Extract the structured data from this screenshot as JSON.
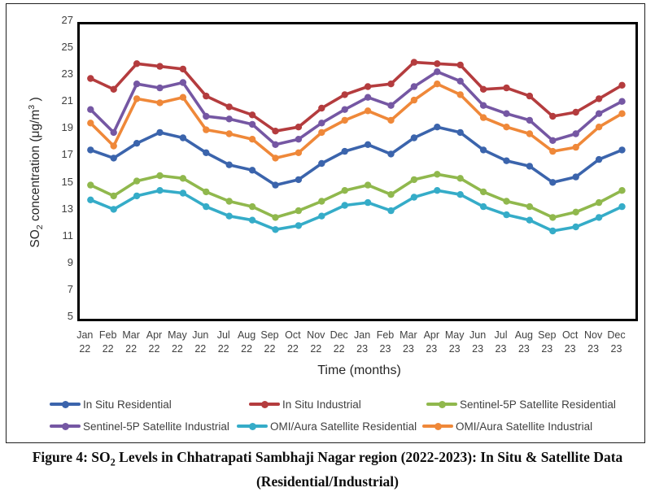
{
  "figure": {
    "caption_line1_prefix": "Figure 4: SO",
    "caption_line1_sub": "2",
    "caption_line1_rest": " Levels in Chhatrapati Sambhaji Nagar region (2022-2023): In Situ & Satellite Data",
    "caption_line2": "(Residential/Industrial)"
  },
  "chart_data": {
    "type": "line",
    "title": "",
    "x_title": "Time (months)",
    "y_title_parts": {
      "prefix": "SO",
      "sub": "2",
      "mid": " concentration (μg/m",
      "sup": "3",
      "suffix": " )"
    },
    "categories": [
      "Jan 22",
      "Feb 22",
      "Mar 22",
      "Apr 22",
      "May 22",
      "Jun 22",
      "Jul 22",
      "Aug 22",
      "Sep 22",
      "Oct 22",
      "Nov 22",
      "Dec 22",
      "Jan 23",
      "Feb 23",
      "Mar 23",
      "Apr 23",
      "May 23",
      "Jun 23",
      "Jul 23",
      "Aug 23",
      "Sep 23",
      "Oct 23",
      "Nov 23",
      "Dec 23"
    ],
    "ylim": [
      5,
      27
    ],
    "y_ticks": [
      27,
      25,
      23,
      21,
      19,
      17,
      15,
      13,
      11,
      9,
      7,
      5
    ],
    "grid": false,
    "legend_position": "bottom",
    "marker": "circle",
    "series": [
      {
        "name": "In Situ Residential",
        "color": "#3B64AC",
        "values": [
          17.6,
          17.0,
          18.1,
          18.9,
          18.5,
          17.4,
          16.5,
          16.1,
          15.0,
          15.4,
          16.6,
          17.5,
          18.0,
          17.3,
          18.5,
          19.3,
          18.9,
          17.6,
          16.8,
          16.4,
          15.2,
          15.6,
          16.9,
          17.6
        ]
      },
      {
        "name": "In Situ Industrial",
        "color": "#B43C3E",
        "values": [
          22.9,
          22.1,
          24.0,
          23.8,
          23.6,
          21.6,
          20.8,
          20.2,
          19.0,
          19.3,
          20.7,
          21.7,
          22.3,
          22.5,
          24.1,
          24.0,
          23.9,
          22.1,
          22.2,
          21.6,
          20.1,
          20.4,
          21.4,
          22.4
        ]
      },
      {
        "name": "Sentinel-5P Satellite Residential",
        "color": "#90B84D",
        "values": [
          15.0,
          14.2,
          15.3,
          15.7,
          15.5,
          14.5,
          13.8,
          13.4,
          12.6,
          13.1,
          13.8,
          14.6,
          15.0,
          14.3,
          15.4,
          15.8,
          15.5,
          14.5,
          13.8,
          13.4,
          12.6,
          13.0,
          13.7,
          14.6
        ]
      },
      {
        "name": "Sentinel-5P Satellite Industrial",
        "color": "#7557A3",
        "values": [
          20.6,
          18.9,
          22.5,
          22.2,
          22.6,
          20.1,
          19.9,
          19.5,
          18.0,
          18.4,
          19.6,
          20.6,
          21.5,
          20.9,
          22.3,
          23.4,
          22.7,
          20.9,
          20.3,
          19.8,
          18.3,
          18.8,
          20.3,
          21.2
        ]
      },
      {
        "name": "OMI/Aura Satellite Residential",
        "color": "#35ACC8",
        "values": [
          13.9,
          13.2,
          14.2,
          14.6,
          14.4,
          13.4,
          12.7,
          12.4,
          11.7,
          12.0,
          12.7,
          13.5,
          13.7,
          13.1,
          14.1,
          14.6,
          14.3,
          13.4,
          12.8,
          12.4,
          11.6,
          11.9,
          12.6,
          13.4
        ]
      },
      {
        "name": "OMI/Aura Satellite Industrial",
        "color": "#EF8839",
        "values": [
          19.6,
          17.9,
          21.4,
          21.1,
          21.5,
          19.1,
          18.8,
          18.4,
          17.0,
          17.4,
          18.9,
          19.8,
          20.5,
          19.8,
          21.3,
          22.5,
          21.7,
          20.0,
          19.3,
          18.8,
          17.5,
          17.8,
          19.3,
          20.3
        ]
      }
    ]
  }
}
